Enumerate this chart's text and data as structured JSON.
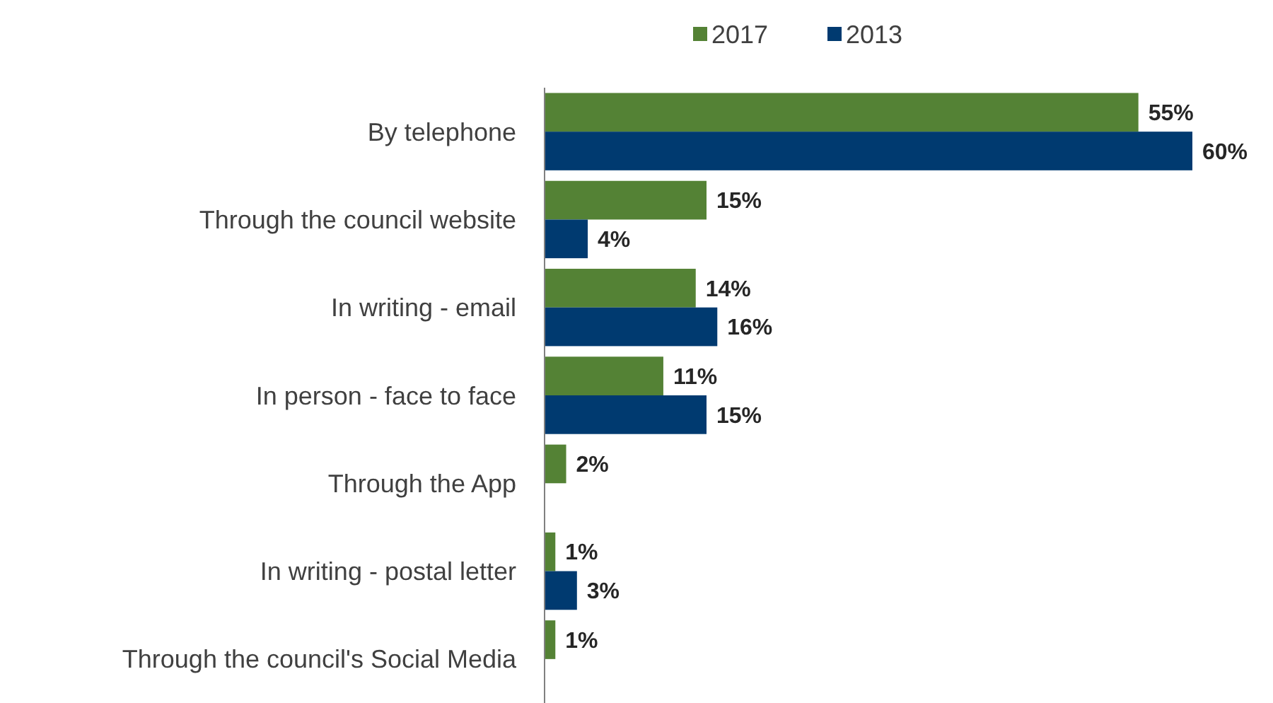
{
  "chart_data": {
    "type": "bar",
    "orientation": "horizontal",
    "categories": [
      "By telephone",
      "Through the council website",
      "In writing - email",
      "In person - face to face",
      "Through the App",
      "In writing - postal letter",
      "Through the council's Social Media"
    ],
    "series": [
      {
        "name": "2017",
        "color": "#548235",
        "values": [
          55,
          15,
          14,
          11,
          2,
          1,
          1
        ],
        "value_labels": [
          "55%",
          "15%",
          "14%",
          "11%",
          "2%",
          "1%",
          "1%"
        ]
      },
      {
        "name": "2013",
        "color": "#003a70",
        "values": [
          60,
          4,
          16,
          15,
          null,
          3,
          null
        ],
        "value_labels": [
          "60%",
          "4%",
          "16%",
          "15%",
          null,
          "3%",
          null
        ]
      }
    ],
    "legend": "top",
    "data_labels": true
  }
}
